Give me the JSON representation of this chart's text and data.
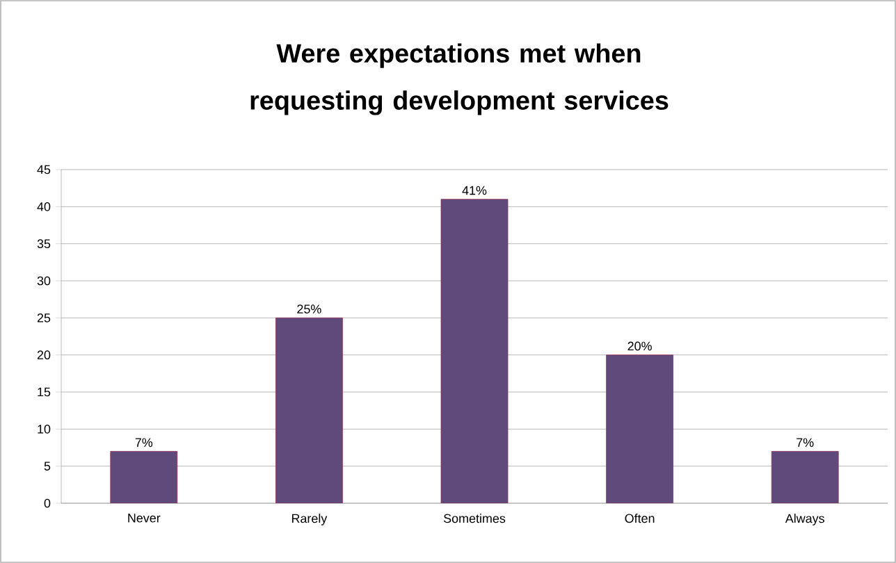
{
  "chart_data": {
    "type": "bar",
    "title": "Were expectations met when requesting development services",
    "categories": [
      "Never",
      "Rarely",
      "Sometimes",
      "Often",
      "Always"
    ],
    "values": [
      7,
      25,
      41,
      20,
      7
    ],
    "value_labels": [
      "7%",
      "25%",
      "41%",
      "20%",
      "7%"
    ],
    "color": "#604a7b",
    "ylim": [
      0,
      45
    ],
    "yticks": [
      0,
      5,
      10,
      15,
      20,
      25,
      30,
      35,
      40,
      45
    ],
    "grid": "y"
  }
}
